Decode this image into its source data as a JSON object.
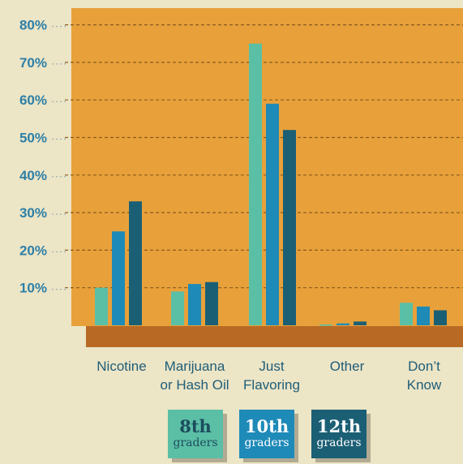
{
  "chart_data": {
    "type": "bar",
    "categories": [
      [
        "Nicotine"
      ],
      [
        "Marijuana",
        "or Hash Oil"
      ],
      [
        "Just",
        "Flavoring"
      ],
      [
        "Other"
      ],
      [
        "Don’t",
        "Know"
      ]
    ],
    "series": [
      {
        "name": "8th graders",
        "color": "#5bbfa6",
        "values": [
          10,
          9,
          75,
          0.2,
          6
        ]
      },
      {
        "name": "10th graders",
        "color": "#1e8ab8",
        "values": [
          25,
          11,
          59,
          0.5,
          5
        ]
      },
      {
        "name": "12th graders",
        "color": "#1b5f75",
        "values": [
          33,
          11.5,
          52,
          1,
          4
        ]
      }
    ],
    "ylim": [
      0,
      80
    ],
    "yticks": [
      "10%",
      "20%",
      "30%",
      "40%",
      "50%",
      "60%",
      "70%",
      "80%"
    ],
    "grid": true,
    "legend_position": "bottom"
  },
  "legend": [
    {
      "grade": "8th",
      "sub": "graders",
      "bg": "#5bbfa6",
      "fg": "#1d4d5e"
    },
    {
      "grade": "10th",
      "sub": "graders",
      "bg": "#1e8ab8",
      "fg": "#ffffff"
    },
    {
      "grade": "12th",
      "sub": "graders",
      "bg": "#1b5f75",
      "fg": "#ffffff"
    }
  ]
}
